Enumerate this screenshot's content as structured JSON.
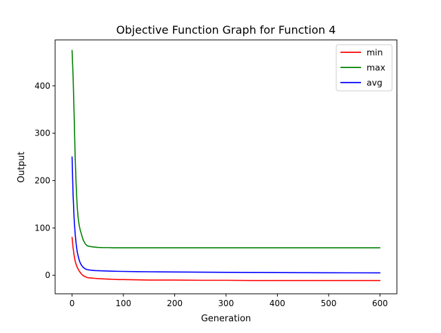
{
  "chart_data": {
    "type": "line",
    "title": "Objective Function Graph for Function 4",
    "xlabel": "Generation",
    "ylabel": "Output",
    "xlim": [
      -33,
      633
    ],
    "ylim": [
      -39,
      497
    ],
    "xticks": [
      0,
      100,
      200,
      300,
      400,
      500,
      600
    ],
    "yticks": [
      0,
      100,
      200,
      300,
      400
    ],
    "grid": false,
    "legend_position": "top-right",
    "series": [
      {
        "name": "min",
        "color": "#ff0000",
        "x": [
          0,
          2,
          4,
          6,
          8,
          10,
          12,
          14,
          16,
          18,
          20,
          22,
          24,
          26,
          28,
          30,
          35,
          40,
          45,
          50,
          60,
          70,
          80,
          90,
          100,
          125,
          150,
          175,
          200,
          250,
          300,
          350,
          400,
          450,
          500,
          550,
          600
        ],
        "values": [
          80,
          58,
          42,
          30,
          23,
          17,
          13,
          9,
          6,
          3,
          1,
          -1,
          -2,
          -3,
          -4,
          -5,
          -5.5,
          -6,
          -6.5,
          -7,
          -7.5,
          -8,
          -8.5,
          -9,
          -9,
          -9.5,
          -10,
          -10,
          -10,
          -10.5,
          -10.5,
          -11,
          -11,
          -11,
          -11,
          -11,
          -11
        ]
      },
      {
        "name": "max",
        "color": "#008000",
        "x": [
          0,
          2,
          4,
          6,
          8,
          10,
          12,
          14,
          16,
          18,
          20,
          22,
          24,
          26,
          28,
          30,
          35,
          40,
          45,
          50,
          60,
          70,
          80,
          90,
          100,
          125,
          150,
          175,
          200,
          250,
          300,
          350,
          400,
          450,
          500,
          550,
          600
        ],
        "values": [
          475,
          420,
          340,
          250,
          190,
          145,
          120,
          105,
          95,
          88,
          80,
          74,
          70,
          66,
          64,
          62,
          61,
          60,
          59.5,
          59,
          58.5,
          58.5,
          58,
          58,
          58,
          58,
          58,
          58,
          58,
          58,
          58,
          58,
          58,
          58,
          58,
          58,
          58
        ]
      },
      {
        "name": "avg",
        "color": "#0000ff",
        "x": [
          0,
          2,
          4,
          6,
          8,
          10,
          12,
          14,
          16,
          18,
          20,
          22,
          24,
          26,
          28,
          30,
          35,
          40,
          45,
          50,
          60,
          70,
          80,
          90,
          100,
          125,
          150,
          175,
          200,
          250,
          300,
          350,
          400,
          450,
          500,
          550,
          600
        ],
        "values": [
          250,
          170,
          120,
          88,
          66,
          50,
          40,
          32,
          26,
          22,
          19,
          16.5,
          15,
          13.5,
          12.5,
          12,
          11,
          10.5,
          10,
          9.8,
          9.4,
          9,
          8.7,
          8.4,
          8.2,
          7.8,
          7.5,
          7.2,
          7,
          6.6,
          6.3,
          6,
          5.8,
          5.6,
          5.4,
          5.3,
          5.2
        ]
      }
    ]
  }
}
